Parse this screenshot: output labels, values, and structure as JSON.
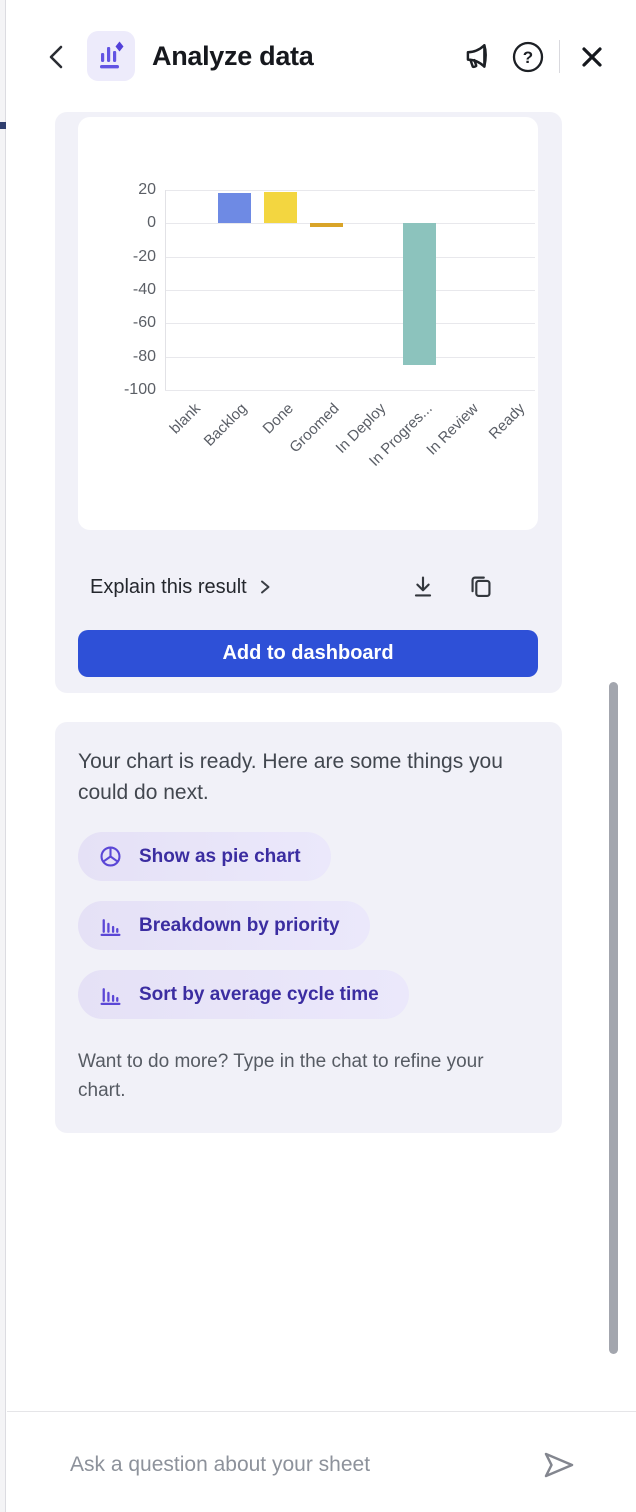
{
  "header": {
    "title": "Analyze data"
  },
  "chart_data": {
    "type": "bar",
    "title": "",
    "xlabel": "",
    "ylabel": "",
    "categories": [
      "blank",
      "Backlog",
      "Done",
      "Groomed",
      "In Deploy",
      "In Progres...",
      "In Review",
      "Ready"
    ],
    "values": [
      0,
      18,
      19,
      -2,
      0,
      -85,
      0,
      0
    ],
    "bar_colors": [
      "#6e8ae4",
      "#6e8ae4",
      "#f3d640",
      "#d9a428",
      "#6e8ae4",
      "#8cc3bd",
      "#6e8ae4",
      "#6e8ae4"
    ],
    "ylim": [
      -100,
      20
    ],
    "yticks": [
      20,
      0,
      -20,
      -40,
      -60,
      -80,
      -100
    ],
    "grid": true,
    "legend": false
  },
  "result_actions": {
    "explain_label": "Explain this result",
    "explain_chevron": "›",
    "add_to_dashboard_label": "Add to dashboard"
  },
  "assistant": {
    "message": "Your chart is ready. Here are some things you could do next.",
    "suggestions": [
      {
        "icon": "pie-chart-icon",
        "label": "Show as pie chart"
      },
      {
        "icon": "bar-chart-icon",
        "label": "Breakdown by priority"
      },
      {
        "icon": "bar-chart-icon",
        "label": "Sort by average cycle time"
      }
    ],
    "footer": "Want to do more? Type in the chat to refine your chart."
  },
  "composer": {
    "placeholder": "Ask a question about your sheet"
  },
  "colors": {
    "accent_purple": "#5b47d6",
    "button_blue": "#2e50d7",
    "pill_text": "#3b2da1",
    "block_bg": "#f1f1f8",
    "bar_blue": "#6e8ae4",
    "bar_yellow": "#f3d640",
    "bar_orange": "#d9a428",
    "bar_teal": "#8cc3bd"
  }
}
